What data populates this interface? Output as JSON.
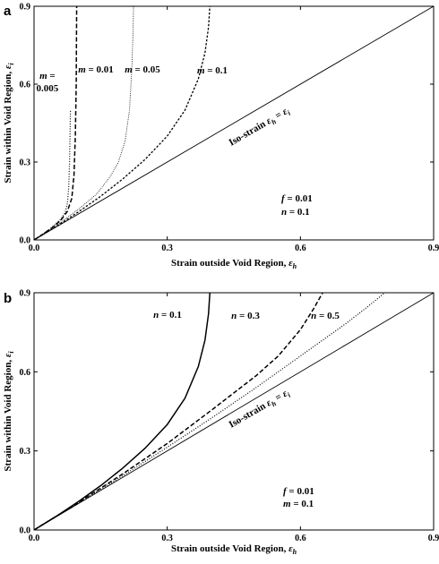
{
  "chart_data": [
    {
      "type": "line",
      "panel": "a",
      "xlabel": "Strain outside Void Region, ",
      "xlabel_symbol": "ε",
      "xlabel_sub": "h",
      "ylabel": "Strain within Void Region, ",
      "ylabel_symbol": "ε",
      "ylabel_sub": "i",
      "xlim": [
        0,
        0.9
      ],
      "ylim": [
        0,
        0.9
      ],
      "xticks": [
        "0.0",
        "0.3",
        "0.6",
        "0.9"
      ],
      "yticks": [
        "0.0",
        "0.3",
        "0.6",
        "0.9"
      ],
      "grid": false,
      "params": [
        {
          "name": "f",
          "value": "= 0.01"
        },
        {
          "name": "n",
          "value": "= 0.1"
        }
      ],
      "isostrain_label": "Iso-strain",
      "isostrain_eq": "ε_h = ε_i",
      "series": [
        {
          "label_name": "m",
          "label_value": "= 0.005",
          "style": "dotted",
          "points": [
            [
              0,
              0
            ],
            [
              0.02,
              0.023
            ],
            [
              0.04,
              0.048
            ],
            [
              0.06,
              0.08
            ],
            [
              0.07,
              0.105
            ],
            [
              0.075,
              0.14
            ],
            [
              0.078,
              0.2
            ],
            [
              0.08,
              0.3
            ],
            [
              0.081,
              0.4
            ],
            [
              0.082,
              0.5
            ]
          ]
        },
        {
          "label_name": "m",
          "label_value": "= 0.01",
          "style": "dashed",
          "points": [
            [
              0,
              0
            ],
            [
              0.02,
              0.022
            ],
            [
              0.04,
              0.046
            ],
            [
              0.06,
              0.075
            ],
            [
              0.075,
              0.11
            ],
            [
              0.085,
              0.16
            ],
            [
              0.09,
              0.25
            ],
            [
              0.093,
              0.4
            ],
            [
              0.095,
              0.6
            ],
            [
              0.096,
              0.9
            ]
          ]
        },
        {
          "label_name": "m",
          "label_value": "= 0.05",
          "style": "fine-dotted",
          "points": [
            [
              0,
              0
            ],
            [
              0.05,
              0.055
            ],
            [
              0.1,
              0.118
            ],
            [
              0.14,
              0.175
            ],
            [
              0.17,
              0.24
            ],
            [
              0.19,
              0.3
            ],
            [
              0.205,
              0.38
            ],
            [
              0.215,
              0.5
            ],
            [
              0.22,
              0.65
            ],
            [
              0.223,
              0.8
            ],
            [
              0.224,
              0.9
            ]
          ]
        },
        {
          "label_name": "m",
          "label_value": "= 0.1",
          "style": "dash-dot",
          "points": [
            [
              0,
              0
            ],
            [
              0.05,
              0.052
            ],
            [
              0.1,
              0.108
            ],
            [
              0.15,
              0.168
            ],
            [
              0.2,
              0.235
            ],
            [
              0.25,
              0.31
            ],
            [
              0.3,
              0.4
            ],
            [
              0.34,
              0.5
            ],
            [
              0.37,
              0.62
            ],
            [
              0.385,
              0.72
            ],
            [
              0.393,
              0.82
            ],
            [
              0.396,
              0.9
            ]
          ]
        },
        {
          "label_name": "",
          "label_value": "",
          "style": "solid",
          "points": [
            [
              0,
              0
            ],
            [
              0.9,
              0.9
            ]
          ]
        }
      ]
    },
    {
      "type": "line",
      "panel": "b",
      "xlabel": "Strain outside Void Region, ",
      "xlabel_symbol": "ε",
      "xlabel_sub": "h",
      "ylabel": "Strain within Void Region, ",
      "ylabel_symbol": "ε",
      "ylabel_sub": "i",
      "xlim": [
        0,
        0.9
      ],
      "ylim": [
        0,
        0.9
      ],
      "xticks": [
        "0.0",
        "0.3",
        "0.6",
        "0.9"
      ],
      "yticks": [
        "0.0",
        "0.3",
        "0.6",
        "0.9"
      ],
      "grid": false,
      "params": [
        {
          "name": "f",
          "value": "= 0.01"
        },
        {
          "name": "m",
          "value": "= 0.1"
        }
      ],
      "isostrain_label": "Iso-strain",
      "isostrain_eq": "ε_h = ε_i",
      "series": [
        {
          "label_name": "n",
          "label_value": "= 0.1",
          "style": "solid-thick",
          "points": [
            [
              0,
              0
            ],
            [
              0.05,
              0.052
            ],
            [
              0.1,
              0.108
            ],
            [
              0.15,
              0.168
            ],
            [
              0.2,
              0.235
            ],
            [
              0.25,
              0.31
            ],
            [
              0.3,
              0.4
            ],
            [
              0.34,
              0.5
            ],
            [
              0.37,
              0.62
            ],
            [
              0.385,
              0.72
            ],
            [
              0.393,
              0.82
            ],
            [
              0.396,
              0.9
            ]
          ]
        },
        {
          "label_name": "n",
          "label_value": "= 0.3",
          "style": "dashed",
          "points": [
            [
              0,
              0
            ],
            [
              0.1,
              0.104
            ],
            [
              0.2,
              0.213
            ],
            [
              0.3,
              0.328
            ],
            [
              0.4,
              0.455
            ],
            [
              0.5,
              0.585
            ],
            [
              0.55,
              0.66
            ],
            [
              0.6,
              0.76
            ],
            [
              0.63,
              0.84
            ],
            [
              0.65,
              0.9
            ]
          ]
        },
        {
          "label_name": "n",
          "label_value": "= 0.5",
          "style": "dotted",
          "points": [
            [
              0,
              0
            ],
            [
              0.1,
              0.102
            ],
            [
              0.2,
              0.206
            ],
            [
              0.3,
              0.314
            ],
            [
              0.4,
              0.425
            ],
            [
              0.5,
              0.54
            ],
            [
              0.6,
              0.66
            ],
            [
              0.7,
              0.78
            ],
            [
              0.75,
              0.845
            ],
            [
              0.79,
              0.9
            ]
          ]
        },
        {
          "label_name": "",
          "label_value": "",
          "style": "solid",
          "points": [
            [
              0,
              0
            ],
            [
              0.9,
              0.9
            ]
          ]
        }
      ]
    }
  ]
}
